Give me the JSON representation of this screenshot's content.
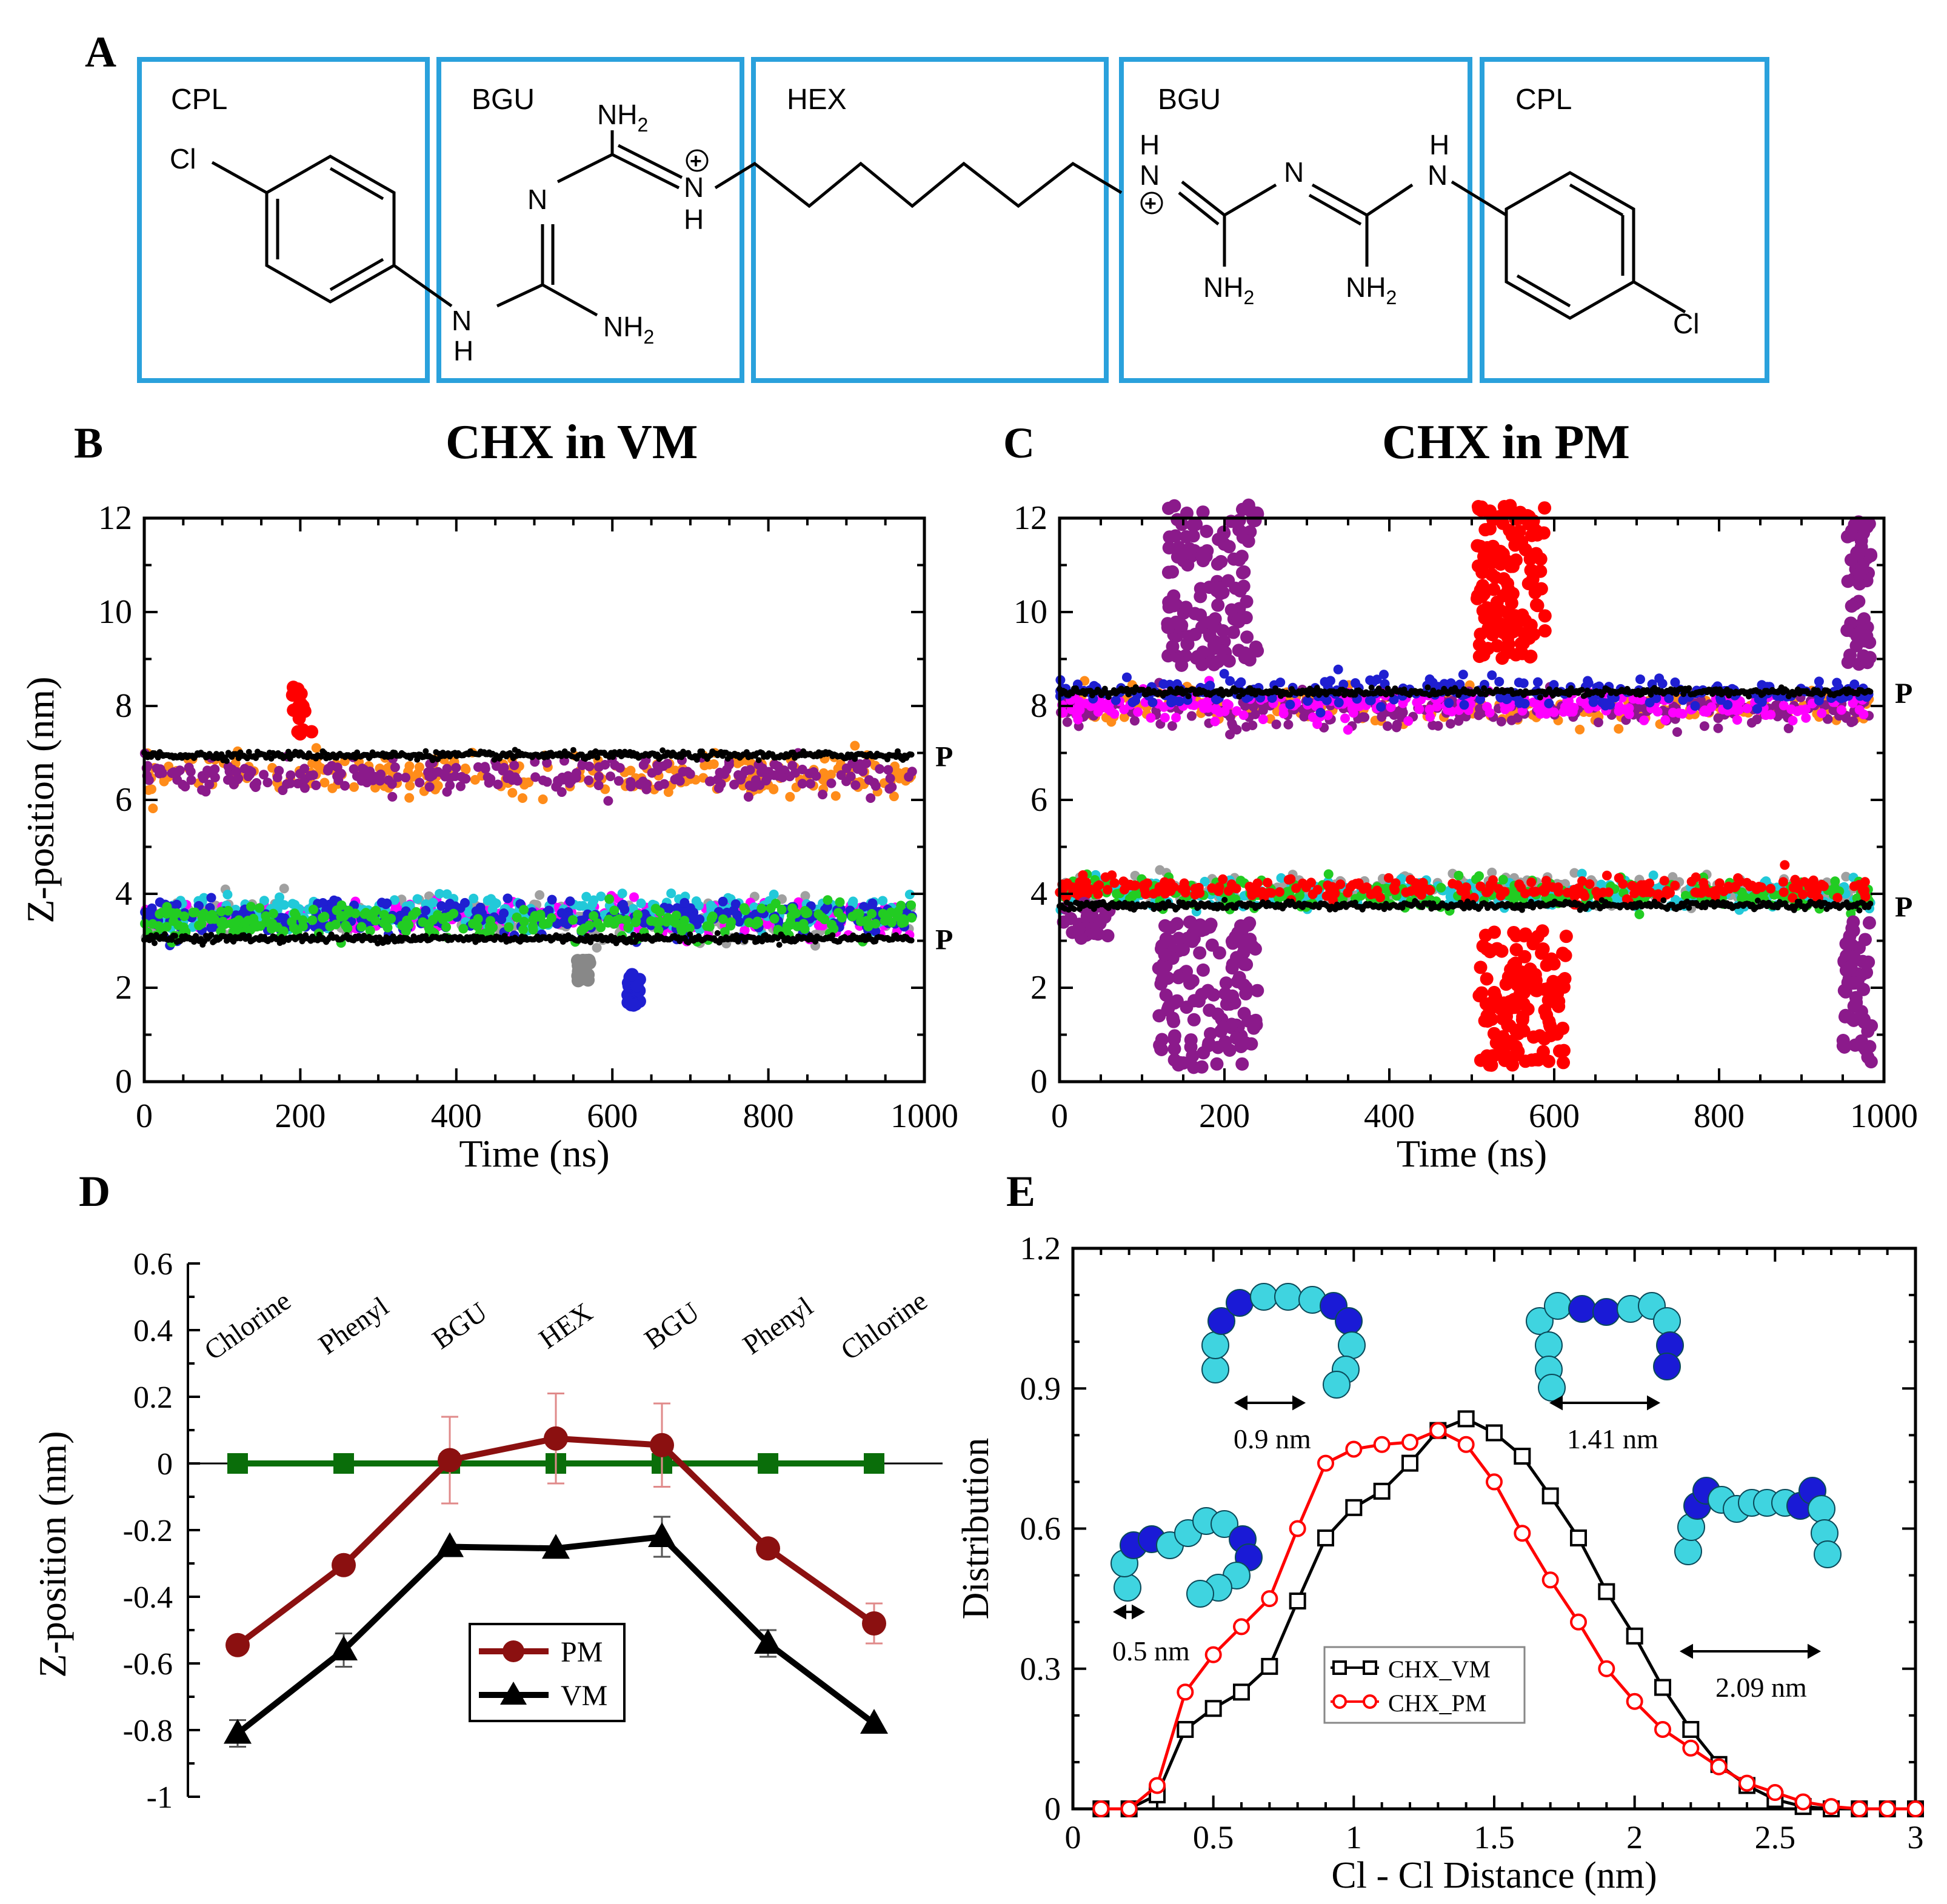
{
  "panels": {
    "a": "A",
    "b": "B",
    "c": "C",
    "d": "D",
    "e": "E"
  },
  "titles": {
    "b": "CHX in VM",
    "c": "CHX in PM"
  },
  "molecule": {
    "fragments": [
      "CPL",
      "BGU",
      "HEX",
      "BGU",
      "CPL"
    ],
    "atoms": {
      "cl": "Cl",
      "n": "N",
      "h": "H",
      "nh": "NH",
      "sub2": "2",
      "plus": "+"
    }
  },
  "chart_data": [
    {
      "id": "B",
      "type": "scatter",
      "title": "CHX in VM",
      "xlabel": "Time (ns)",
      "ylabel": "Z-position (nm)",
      "xlim": [
        0,
        1000
      ],
      "ylim": [
        0,
        12
      ],
      "xticks": [
        "0",
        "200",
        "400",
        "600",
        "800",
        "1000"
      ],
      "yticks": [
        "0",
        "2",
        "4",
        "6",
        "8",
        "10",
        "12"
      ],
      "annotations": [
        "P",
        "P"
      ],
      "phosphate_levels": [
        6.95,
        3.05
      ],
      "clusters": [
        {
          "color": "#ff8c1a",
          "center": 6.55,
          "spread": 0.35
        },
        {
          "color": "#8b1a8b",
          "center": 6.5,
          "spread": 0.3
        },
        {
          "color": "#a0a0a0",
          "center": 3.45,
          "spread": 0.35
        },
        {
          "color": "#ff00ff",
          "center": 3.5,
          "spread": 0.3
        },
        {
          "color": "#22c9d9",
          "center": 3.6,
          "spread": 0.3
        },
        {
          "color": "#1f1fd1",
          "center": 3.5,
          "spread": 0.3
        },
        {
          "color": "#22cc22",
          "center": 3.4,
          "spread": 0.3
        }
      ],
      "excursions": [
        {
          "color": "#ff0000",
          "x": [
            190,
            215
          ],
          "y": [
            7.4,
            8.4
          ]
        },
        {
          "color": "#888888",
          "x": [
            555,
            575
          ],
          "y": [
            2.1,
            2.6
          ]
        },
        {
          "color": "#1f1fd1",
          "x": [
            620,
            635
          ],
          "y": [
            1.6,
            2.4
          ]
        }
      ]
    },
    {
      "id": "C",
      "type": "scatter",
      "title": "CHX in PM",
      "xlabel": "Time (ns)",
      "ylabel": "",
      "xlim": [
        0,
        1000
      ],
      "ylim": [
        0,
        12
      ],
      "xticks": [
        "0",
        "200",
        "400",
        "600",
        "800",
        "1000"
      ],
      "yticks": [
        "0",
        "2",
        "4",
        "6",
        "8",
        "10",
        "12"
      ],
      "annotations": [
        "P",
        "P"
      ],
      "phosphate_levels": [
        8.3,
        3.75
      ],
      "clusters": [
        {
          "color": "#ff8c1a",
          "center": 8.0,
          "spread": 0.3
        },
        {
          "color": "#8b1a8b",
          "center": 7.9,
          "spread": 0.3
        },
        {
          "color": "#ff00ff",
          "center": 8.0,
          "spread": 0.25
        },
        {
          "color": "#1f1fd1",
          "center": 8.3,
          "spread": 0.25
        },
        {
          "color": "#a0a0a0",
          "center": 4.1,
          "spread": 0.25
        },
        {
          "color": "#22c9d9",
          "center": 4.0,
          "spread": 0.25
        },
        {
          "color": "#22cc22",
          "center": 4.0,
          "spread": 0.25
        },
        {
          "color": "#ff0000",
          "center": 4.1,
          "spread": 0.2
        }
      ],
      "excursions": [
        {
          "color": "#8b1a8b",
          "x": [
            130,
            240
          ],
          "y": [
            8.8,
            12.3
          ]
        },
        {
          "color": "#8b1a8b",
          "x": [
            120,
            240
          ],
          "y": [
            0.3,
            3.4
          ]
        },
        {
          "color": "#ff0000",
          "x": [
            505,
            590
          ],
          "y": [
            9.0,
            12.3
          ]
        },
        {
          "color": "#ff0000",
          "x": [
            505,
            615
          ],
          "y": [
            0.3,
            3.3
          ]
        },
        {
          "color": "#8b1a8b",
          "x": [
            955,
            985
          ],
          "y": [
            8.8,
            12.0
          ]
        },
        {
          "color": "#8b1a8b",
          "x": [
            950,
            985
          ],
          "y": [
            0.3,
            3.4
          ]
        },
        {
          "color": "#8b1a8b",
          "x": [
            0,
            60
          ],
          "y": [
            3.0,
            3.8
          ]
        }
      ]
    },
    {
      "id": "D",
      "type": "line",
      "xlabel": "",
      "ylabel": "Z-position (nm)",
      "ylim": [
        -1,
        0.6
      ],
      "yticks": [
        "-1",
        "-0.8",
        "-0.6",
        "-0.4",
        "-0.2",
        "0",
        "0.2",
        "0.4",
        "0.6"
      ],
      "categories": [
        "Chlorine",
        "Phenyl",
        "BGU",
        "HEX",
        "BGU",
        "Phenyl",
        "Chlorine"
      ],
      "series": [
        {
          "name": "PM",
          "color": "#8b1010",
          "marker": "circle",
          "values": [
            -0.545,
            -0.305,
            0.01,
            0.075,
            0.055,
            -0.255,
            -0.48
          ],
          "errors": [
            0,
            0,
            0.13,
            0.135,
            0.125,
            0,
            0.06
          ]
        },
        {
          "name": "VM",
          "color": "#000000",
          "marker": "triangle",
          "values": [
            -0.81,
            -0.56,
            -0.25,
            -0.255,
            -0.22,
            -0.54,
            -0.78
          ],
          "errors": [
            0.04,
            0.05,
            0,
            0,
            0.06,
            0.04,
            0
          ]
        },
        {
          "name": "",
          "color": "#0a6e0a",
          "marker": "square",
          "values": [
            0,
            0,
            0,
            0,
            0,
            0,
            0
          ],
          "errors": [
            0,
            0,
            0,
            0,
            0,
            0,
            0
          ]
        }
      ]
    },
    {
      "id": "E",
      "type": "line",
      "xlabel": "Cl - Cl Distance (nm)",
      "ylabel": "Distribution",
      "xlim": [
        0,
        3
      ],
      "ylim": [
        0,
        1.2
      ],
      "xticks": [
        "0",
        "0.5",
        "1",
        "1.5",
        "2",
        "2.5",
        "3"
      ],
      "yticks": [
        "0",
        "0.3",
        "0.6",
        "0.9",
        "1.2"
      ],
      "x": [
        0.1,
        0.2,
        0.3,
        0.4,
        0.5,
        0.6,
        0.7,
        0.8,
        0.9,
        1.0,
        1.1,
        1.2,
        1.3,
        1.4,
        1.5,
        1.6,
        1.7,
        1.8,
        1.9,
        2.0,
        2.1,
        2.2,
        2.3,
        2.4,
        2.5,
        2.6,
        2.7,
        2.8,
        2.9,
        3.0
      ],
      "series": [
        {
          "name": "CHX_VM",
          "color": "#000000",
          "marker": "square",
          "values": [
            0,
            0,
            0.03,
            0.17,
            0.215,
            0.25,
            0.305,
            0.445,
            0.58,
            0.645,
            0.68,
            0.74,
            0.81,
            0.835,
            0.805,
            0.755,
            0.67,
            0.58,
            0.465,
            0.37,
            0.26,
            0.17,
            0.095,
            0.05,
            0.02,
            0.005,
            0,
            0,
            0,
            0
          ]
        },
        {
          "name": "CHX_PM",
          "color": "#ff0000",
          "marker": "circle",
          "values": [
            0,
            0,
            0.05,
            0.25,
            0.33,
            0.39,
            0.45,
            0.6,
            0.74,
            0.77,
            0.78,
            0.785,
            0.81,
            0.78,
            0.7,
            0.59,
            0.49,
            0.4,
            0.3,
            0.23,
            0.17,
            0.13,
            0.09,
            0.055,
            0.035,
            0.015,
            0.005,
            0,
            0,
            0
          ]
        }
      ],
      "insets": [
        "0.9 nm",
        "1.41 nm",
        "0.5 nm",
        "2.09 nm"
      ]
    }
  ]
}
